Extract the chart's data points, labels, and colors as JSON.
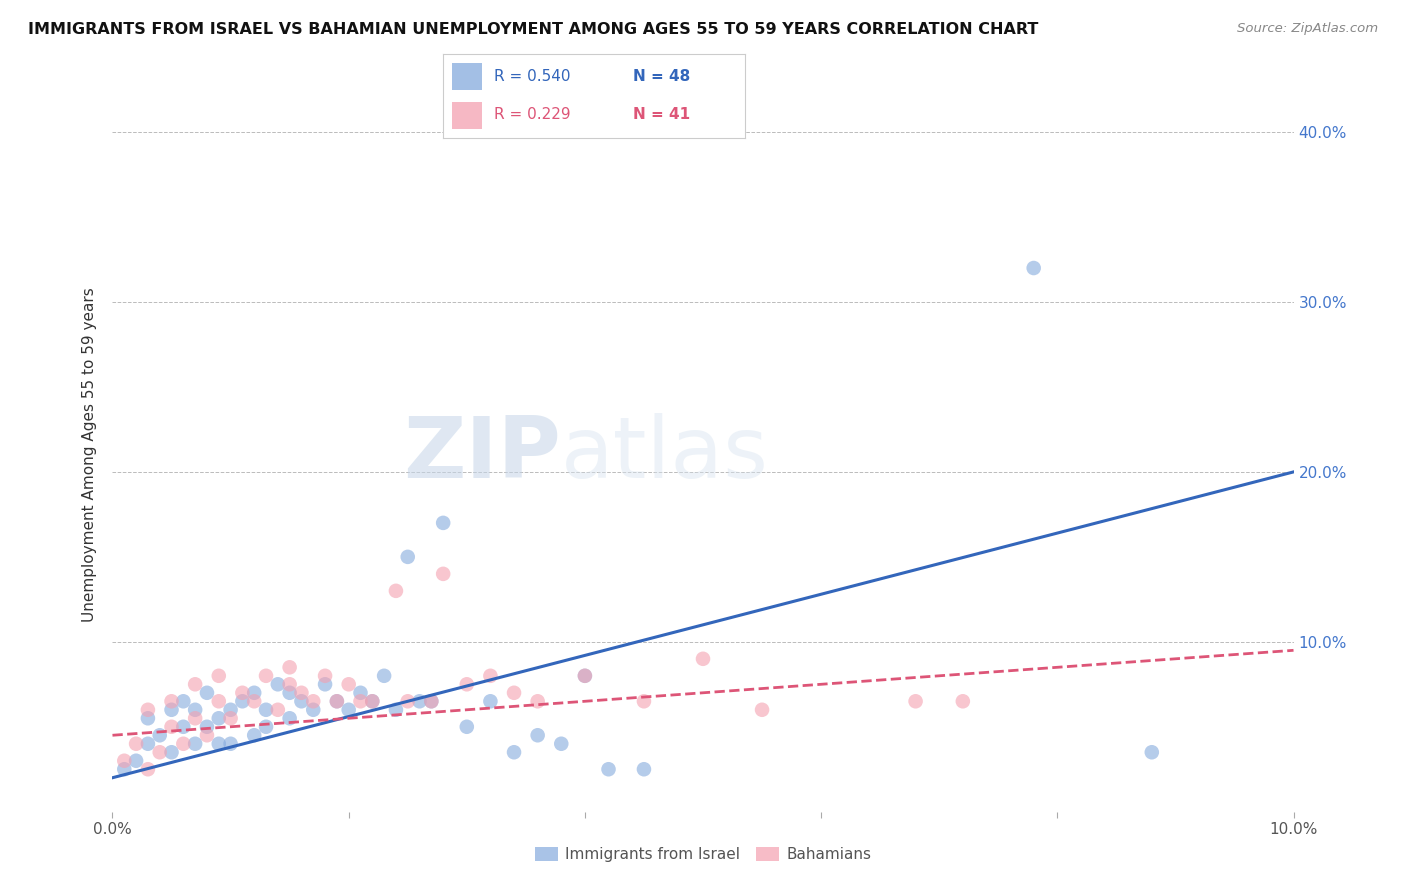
{
  "title": "IMMIGRANTS FROM ISRAEL VS BAHAMIAN UNEMPLOYMENT AMONG AGES 55 TO 59 YEARS CORRELATION CHART",
  "source": "Source: ZipAtlas.com",
  "ylabel": "Unemployment Among Ages 55 to 59 years",
  "xlim": [
    0.0,
    0.1
  ],
  "ylim": [
    0.0,
    0.42
  ],
  "xticks": [
    0.0,
    0.02,
    0.04,
    0.06,
    0.08,
    0.1
  ],
  "yticks_right": [
    0.0,
    0.1,
    0.2,
    0.3,
    0.4
  ],
  "ytick_right_labels": [
    "",
    "10.0%",
    "20.0%",
    "30.0%",
    "40.0%"
  ],
  "blue_color": "#85aadd",
  "pink_color": "#f4a0b0",
  "blue_line_color": "#3366bb",
  "pink_line_color": "#dd5577",
  "legend_blue_r": "R = 0.540",
  "legend_blue_n": "N = 48",
  "legend_pink_r": "R = 0.229",
  "legend_pink_n": "N = 41",
  "series1_label": "Immigrants from Israel",
  "series2_label": "Bahamians",
  "watermark_zip": "ZIP",
  "watermark_atlas": "atlas",
  "blue_scatter_x": [
    0.001,
    0.002,
    0.003,
    0.003,
    0.004,
    0.005,
    0.005,
    0.006,
    0.006,
    0.007,
    0.007,
    0.008,
    0.008,
    0.009,
    0.009,
    0.01,
    0.01,
    0.011,
    0.012,
    0.012,
    0.013,
    0.013,
    0.014,
    0.015,
    0.015,
    0.016,
    0.017,
    0.018,
    0.019,
    0.02,
    0.021,
    0.022,
    0.023,
    0.024,
    0.025,
    0.026,
    0.027,
    0.028,
    0.03,
    0.032,
    0.034,
    0.036,
    0.038,
    0.04,
    0.042,
    0.045,
    0.078,
    0.088
  ],
  "blue_scatter_y": [
    0.025,
    0.03,
    0.04,
    0.055,
    0.045,
    0.035,
    0.06,
    0.05,
    0.065,
    0.04,
    0.06,
    0.05,
    0.07,
    0.055,
    0.04,
    0.06,
    0.04,
    0.065,
    0.045,
    0.07,
    0.06,
    0.05,
    0.075,
    0.055,
    0.07,
    0.065,
    0.06,
    0.075,
    0.065,
    0.06,
    0.07,
    0.065,
    0.08,
    0.06,
    0.15,
    0.065,
    0.065,
    0.17,
    0.05,
    0.065,
    0.035,
    0.045,
    0.04,
    0.08,
    0.025,
    0.025,
    0.32,
    0.035
  ],
  "pink_scatter_x": [
    0.001,
    0.002,
    0.003,
    0.003,
    0.004,
    0.005,
    0.005,
    0.006,
    0.007,
    0.007,
    0.008,
    0.009,
    0.009,
    0.01,
    0.011,
    0.012,
    0.013,
    0.014,
    0.015,
    0.015,
    0.016,
    0.017,
    0.018,
    0.019,
    0.02,
    0.021,
    0.022,
    0.024,
    0.025,
    0.027,
    0.028,
    0.03,
    0.032,
    0.034,
    0.036,
    0.04,
    0.045,
    0.05,
    0.055,
    0.068,
    0.072
  ],
  "pink_scatter_y": [
    0.03,
    0.04,
    0.025,
    0.06,
    0.035,
    0.05,
    0.065,
    0.04,
    0.055,
    0.075,
    0.045,
    0.065,
    0.08,
    0.055,
    0.07,
    0.065,
    0.08,
    0.06,
    0.075,
    0.085,
    0.07,
    0.065,
    0.08,
    0.065,
    0.075,
    0.065,
    0.065,
    0.13,
    0.065,
    0.065,
    0.14,
    0.075,
    0.08,
    0.07,
    0.065,
    0.08,
    0.065,
    0.09,
    0.06,
    0.065,
    0.065
  ],
  "blue_trend_x": [
    0.0,
    0.1
  ],
  "blue_trend_y": [
    0.02,
    0.2
  ],
  "pink_trend_x": [
    0.0,
    0.1
  ],
  "pink_trend_y": [
    0.045,
    0.095
  ],
  "background_color": "#ffffff",
  "grid_color": "#bbbbbb",
  "title_fontsize": 11.5,
  "source_fontsize": 9.5,
  "axis_label_fontsize": 11,
  "tick_fontsize": 11,
  "legend_fontsize": 11
}
